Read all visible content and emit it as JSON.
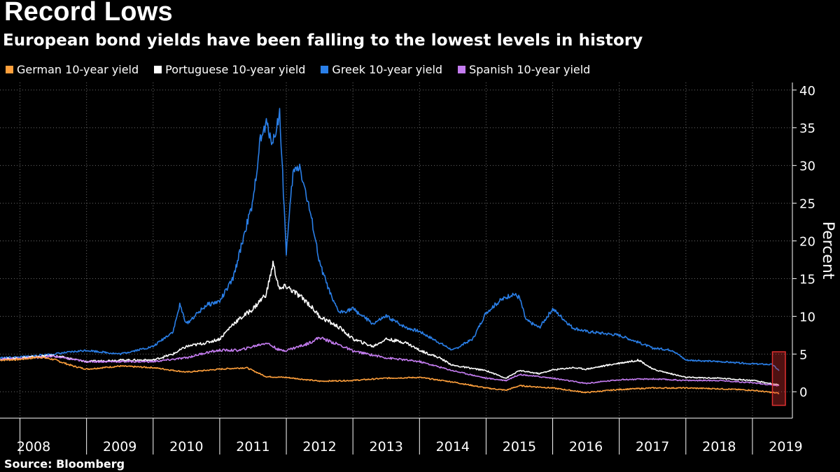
{
  "title": "Record Lows",
  "subtitle": "European bond yields have been falling to the lowest levels in history",
  "source": "Source: Bloomberg",
  "colors": {
    "background": "#000000",
    "german": "#ffa03c",
    "portuguese": "#ffffff",
    "greek": "#2a7fe8",
    "spanish": "#c47cf0",
    "highlight": "#e03030"
  },
  "chart_data": {
    "type": "line",
    "ylabel": "Percent",
    "xlabel": "",
    "ylim": [
      -3.5,
      41
    ],
    "yticks": [
      0,
      5,
      10,
      15,
      20,
      25,
      30,
      35,
      40
    ],
    "xlim": [
      2007.7,
      2019.6
    ],
    "xticks": [
      "2008",
      "2009",
      "2010",
      "2011",
      "2012",
      "2013",
      "2014",
      "2015",
      "2016",
      "2017",
      "2018",
      "2019"
    ],
    "legend_position": "top-left",
    "grid": true,
    "annotations": [
      {
        "type": "highlight-box",
        "x": [
          2019.3,
          2019.7
        ],
        "y": [
          -1.8,
          5.3
        ],
        "note": ""
      }
    ],
    "series": [
      {
        "name": "German 10-year yield",
        "color": "#ffa03c",
        "x": [
          2007.7,
          2008.0,
          2008.3,
          2008.5,
          2008.8,
          2009.0,
          2009.5,
          2010.0,
          2010.5,
          2011.0,
          2011.4,
          2011.7,
          2012.0,
          2012.5,
          2013.0,
          2013.5,
          2014.0,
          2014.5,
          2015.0,
          2015.3,
          2015.5,
          2016.0,
          2016.5,
          2017.0,
          2017.5,
          2018.0,
          2018.5,
          2019.0,
          2019.4
        ],
        "y": [
          4.2,
          4.3,
          4.6,
          4.3,
          3.4,
          3.0,
          3.4,
          3.2,
          2.6,
          3.0,
          3.2,
          2.0,
          1.9,
          1.4,
          1.5,
          1.8,
          1.9,
          1.3,
          0.5,
          0.2,
          0.8,
          0.5,
          -0.1,
          0.3,
          0.5,
          0.5,
          0.4,
          0.2,
          -0.2
        ]
      },
      {
        "name": "Portuguese 10-year yield",
        "color": "#ffffff",
        "x": [
          2007.7,
          2008.0,
          2008.5,
          2009.0,
          2009.5,
          2010.0,
          2010.3,
          2010.5,
          2010.8,
          2011.0,
          2011.2,
          2011.5,
          2011.7,
          2011.8,
          2011.9,
          2012.0,
          2012.3,
          2012.5,
          2012.8,
          2013.0,
          2013.3,
          2013.5,
          2013.8,
          2014.0,
          2014.3,
          2014.5,
          2015.0,
          2015.3,
          2015.5,
          2015.8,
          2016.0,
          2016.3,
          2016.5,
          2017.0,
          2017.3,
          2017.5,
          2018.0,
          2018.5,
          2019.0,
          2019.4
        ],
        "y": [
          4.3,
          4.5,
          4.8,
          4.0,
          4.2,
          4.2,
          5.0,
          6.0,
          6.5,
          7.0,
          9.0,
          11.0,
          13.0,
          17.0,
          13.5,
          14.0,
          12.0,
          10.0,
          8.5,
          7.0,
          6.0,
          7.0,
          6.5,
          5.5,
          4.5,
          3.5,
          2.8,
          1.8,
          2.8,
          2.4,
          2.9,
          3.2,
          3.0,
          3.8,
          4.2,
          3.0,
          1.9,
          1.8,
          1.5,
          0.9
        ]
      },
      {
        "name": "Greek 10-year yield",
        "color": "#2a7fe8",
        "x": [
          2007.7,
          2008.0,
          2008.5,
          2009.0,
          2009.5,
          2010.0,
          2010.3,
          2010.4,
          2010.5,
          2010.8,
          2011.0,
          2011.2,
          2011.4,
          2011.5,
          2011.6,
          2011.7,
          2011.8,
          2011.9,
          2012.0,
          2012.1,
          2012.2,
          2012.4,
          2012.5,
          2012.7,
          2012.8,
          2013.0,
          2013.3,
          2013.5,
          2013.8,
          2014.0,
          2014.3,
          2014.5,
          2014.8,
          2015.0,
          2015.2,
          2015.4,
          2015.5,
          2015.6,
          2015.8,
          2016.0,
          2016.3,
          2016.5,
          2017.0,
          2017.3,
          2017.5,
          2017.8,
          2018.0,
          2018.5,
          2019.0,
          2019.3,
          2019.4
        ],
        "y": [
          4.5,
          4.6,
          5.0,
          5.5,
          5.0,
          6.0,
          8.0,
          11.5,
          9.0,
          11.5,
          12.0,
          15.0,
          22.0,
          25.0,
          33.0,
          35.5,
          33.0,
          37.0,
          18.5,
          29.0,
          30.0,
          22.0,
          17.0,
          12.0,
          10.5,
          11.0,
          9.0,
          10.0,
          8.5,
          8.0,
          6.5,
          5.5,
          7.0,
          10.5,
          12.0,
          13.0,
          12.5,
          9.5,
          8.5,
          11.0,
          8.5,
          8.0,
          7.5,
          6.5,
          5.8,
          5.5,
          4.2,
          4.0,
          3.7,
          3.6,
          2.8
        ]
      },
      {
        "name": "Spanish 10-year yield",
        "color": "#c47cf0",
        "x": [
          2007.7,
          2008.0,
          2008.5,
          2009.0,
          2009.5,
          2010.0,
          2010.5,
          2010.8,
          2011.0,
          2011.3,
          2011.5,
          2011.7,
          2011.9,
          2012.0,
          2012.3,
          2012.5,
          2012.8,
          2013.0,
          2013.5,
          2014.0,
          2014.5,
          2015.0,
          2015.3,
          2015.5,
          2016.0,
          2016.5,
          2017.0,
          2017.5,
          2018.0,
          2018.5,
          2019.0,
          2019.4
        ],
        "y": [
          4.3,
          4.4,
          4.7,
          4.0,
          4.0,
          4.0,
          4.5,
          5.2,
          5.5,
          5.5,
          6.0,
          6.5,
          5.5,
          5.5,
          6.3,
          7.2,
          6.2,
          5.4,
          4.5,
          4.0,
          2.8,
          1.8,
          1.5,
          2.3,
          1.8,
          1.1,
          1.6,
          1.7,
          1.5,
          1.5,
          1.2,
          0.8
        ]
      }
    ]
  }
}
